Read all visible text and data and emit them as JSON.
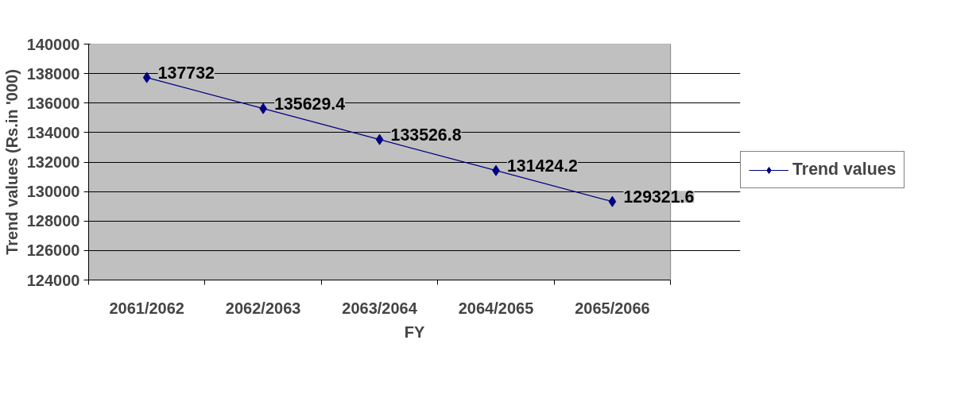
{
  "chart_data": {
    "type": "line",
    "xlabel": "FY",
    "ylabel": "Trend values (Rs.in '000)",
    "categories": [
      "2061/2062",
      "2062/2063",
      "2063/2064",
      "2064/2065",
      "2065/2066"
    ],
    "series": [
      {
        "name": "Trend values",
        "color": "#000080",
        "values": [
          137732,
          135629.4,
          133526.8,
          131424.2,
          129321.6
        ]
      }
    ],
    "ylim": [
      124000,
      140000
    ],
    "yticks": [
      124000,
      126000,
      128000,
      130000,
      132000,
      134000,
      136000,
      138000,
      140000
    ],
    "grid": "y",
    "legend": "right",
    "marker": "diamond",
    "data_labels": true
  }
}
